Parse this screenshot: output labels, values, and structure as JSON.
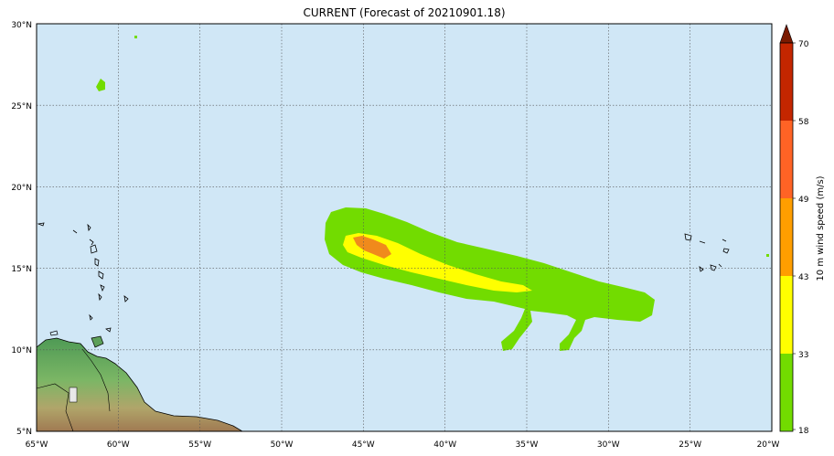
{
  "title": "CURRENT (Forecast of 20210901.18)",
  "map": {
    "ocean_color": "#d0e7f6",
    "lat_labels": [
      "30°N",
      "25°N",
      "20°N",
      "15°N",
      "10°N",
      "5°N"
    ],
    "lon_labels": [
      "65°W",
      "60°W",
      "55°W",
      "50°W",
      "45°W",
      "40°W",
      "35°W",
      "30°W",
      "25°W",
      "20°W"
    ]
  },
  "colorbar": {
    "label": "10 m wind speed (m/s)",
    "ticks": [
      "18",
      "33",
      "43",
      "49",
      "58",
      "70"
    ],
    "colors": {
      "18-33": "#72dc00",
      "33-43": "#ffff00",
      "43-49": "#ff9e00",
      "49-58": "#ff6325",
      "58-70": "#c42600",
      "70+": "#7a1a00"
    }
  },
  "wind_colors": {
    "green": "#72dc00",
    "yellow": "#ffff00",
    "orange": "#f08a1c"
  }
}
